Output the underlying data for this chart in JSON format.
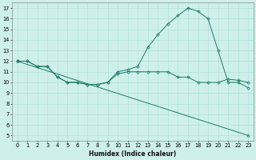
{
  "xlabel": "Humidex (Indice chaleur)",
  "background_color": "#cff0ea",
  "line_color": "#1e7a6a",
  "grid_color": "#a8ddd5",
  "xlim": [
    -0.5,
    23.5
  ],
  "ylim": [
    4.5,
    17.5
  ],
  "xticks": [
    0,
    1,
    2,
    3,
    4,
    5,
    6,
    7,
    8,
    9,
    10,
    11,
    12,
    13,
    14,
    15,
    16,
    17,
    18,
    19,
    20,
    21,
    22,
    23
  ],
  "yticks": [
    5,
    6,
    7,
    8,
    9,
    10,
    11,
    12,
    13,
    14,
    15,
    16,
    17
  ],
  "series1_x": [
    0,
    1,
    2,
    3,
    4,
    5,
    6,
    7,
    8,
    9,
    10,
    11,
    12,
    13,
    14,
    15,
    16,
    17,
    18,
    19,
    20,
    21,
    22,
    23
  ],
  "series1_y": [
    12,
    12,
    11.5,
    11.5,
    10.5,
    10,
    10,
    9.8,
    9.8,
    10,
    11,
    11.2,
    11.5,
    13.3,
    14.5,
    15.5,
    16.3,
    17,
    16.7,
    16,
    13,
    10,
    10,
    9.5
  ],
  "series2_x": [
    0,
    1,
    2,
    3,
    4,
    5,
    6,
    7,
    8,
    9,
    10,
    11,
    12,
    13,
    14,
    15,
    16,
    17,
    18,
    19,
    20,
    21,
    22,
    23
  ],
  "series2_y": [
    12,
    12,
    11.5,
    11.5,
    10.5,
    10,
    10,
    9.8,
    9.8,
    10,
    10.8,
    11,
    11,
    11,
    11,
    11,
    10.5,
    10.5,
    10,
    10,
    10,
    10.3,
    10.2,
    10
  ],
  "series3_x": [
    0,
    23
  ],
  "series3_y": [
    12,
    5
  ],
  "xlabel_fontsize": 5.5,
  "tick_fontsize": 4.8,
  "line_width": 0.7,
  "marker_size": 1.8
}
